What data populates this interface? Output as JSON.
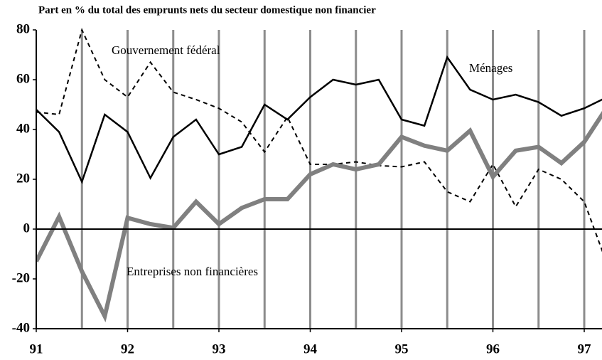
{
  "chart_data": {
    "type": "line",
    "title": "Part en % du total des emprunts nets du secteur domestique non financier",
    "x": [
      91,
      91.25,
      91.5,
      91.75,
      92,
      92.25,
      92.5,
      92.75,
      93,
      93.25,
      93.5,
      93.75,
      94,
      94.25,
      94.5,
      94.75,
      95,
      95.25,
      95.5,
      95.75,
      96,
      96.25,
      96.5,
      96.75,
      97,
      97.25
    ],
    "series": [
      {
        "name": "Ménages",
        "color": "#000000",
        "style": "solid",
        "values": [
          48,
          39,
          19,
          46,
          39,
          20.5,
          37,
          44,
          30,
          33,
          50,
          44,
          53,
          60,
          58,
          60,
          44,
          41.5,
          69,
          56,
          52,
          54,
          51,
          45.5,
          48.5,
          53
        ]
      },
      {
        "name": "Gouvernement fédéral",
        "color": "#000000",
        "style": "dashed",
        "values": [
          47,
          46,
          80,
          60,
          53,
          67,
          55,
          52,
          48.5,
          43,
          31,
          45,
          26,
          26,
          27,
          25.5,
          25,
          27,
          15,
          11,
          26,
          9,
          24,
          20,
          11,
          -14
        ]
      },
      {
        "name": "Entreprises non financières",
        "color": "#808080",
        "style": "thick",
        "values": [
          -13,
          5,
          -17,
          -35,
          4.5,
          2,
          0.5,
          11,
          2,
          8.5,
          12,
          12,
          22,
          26,
          24,
          26,
          37,
          33.5,
          31.5,
          39.5,
          21,
          31.5,
          33,
          26.5,
          35,
          49
        ]
      }
    ],
    "xlim": [
      91,
      97.2
    ],
    "xticks": [
      91,
      92,
      93,
      94,
      95,
      96,
      97
    ],
    "x_grid_lines": [
      91.5,
      92,
      92.5,
      93,
      93.5,
      94,
      94.5,
      95,
      95.5,
      96,
      96.5,
      97
    ],
    "ylim": [
      -40,
      80
    ],
    "yticks": [
      -40,
      -20,
      0,
      20,
      40,
      60,
      80
    ]
  }
}
